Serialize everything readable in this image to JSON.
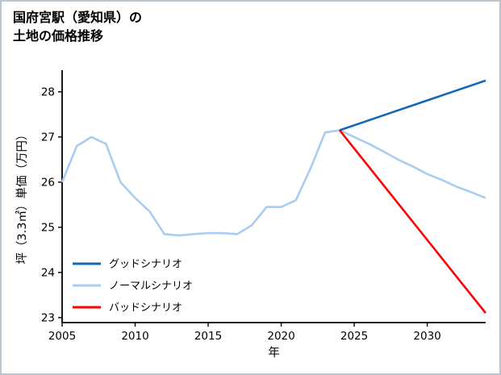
{
  "title_line1": "国府宮駅（愛知県）の",
  "title_line2": "土地の価格推移",
  "chart_data": {
    "type": "line",
    "title": "国府宮駅（愛知県）の土地の価格推移",
    "xlabel": "年",
    "ylabel": "坪（3.3㎡）単価（万円）",
    "xlim": [
      2005,
      2034
    ],
    "ylim": [
      22.9,
      28.5
    ],
    "xticks": [
      2005,
      2010,
      2015,
      2020,
      2025,
      2030
    ],
    "yticks": [
      23,
      24,
      25,
      26,
      27,
      28
    ],
    "grid": false,
    "legend_position": "lower-left",
    "series": [
      {
        "name": "グッドシナリオ",
        "color": "#1068b7",
        "x": [
          2024,
          2026,
          2028,
          2030,
          2032,
          2034
        ],
        "y": [
          27.15,
          27.37,
          27.59,
          27.81,
          28.03,
          28.25
        ]
      },
      {
        "name": "ノーマルシナリオ",
        "color": "#a8cdf0",
        "x": [
          2005,
          2006,
          2007,
          2008,
          2009,
          2010,
          2011,
          2012,
          2013,
          2014,
          2015,
          2016,
          2017,
          2018,
          2019,
          2020,
          2021,
          2022,
          2023,
          2024,
          2025,
          2026,
          2027,
          2028,
          2029,
          2030,
          2031,
          2032,
          2033,
          2034
        ],
        "y": [
          26.0,
          26.8,
          27.0,
          26.85,
          26.0,
          25.65,
          25.35,
          24.85,
          24.82,
          24.85,
          24.87,
          24.87,
          24.85,
          25.05,
          25.45,
          25.45,
          25.6,
          26.3,
          27.1,
          27.15,
          27.0,
          26.85,
          26.68,
          26.5,
          26.35,
          26.18,
          26.05,
          25.9,
          25.78,
          25.65
        ]
      },
      {
        "name": "バッドシナリオ",
        "color": "#ff0000",
        "x": [
          2024,
          2026,
          2028,
          2030,
          2032,
          2034
        ],
        "y": [
          27.15,
          26.34,
          25.53,
          24.72,
          23.91,
          23.1
        ]
      }
    ]
  }
}
